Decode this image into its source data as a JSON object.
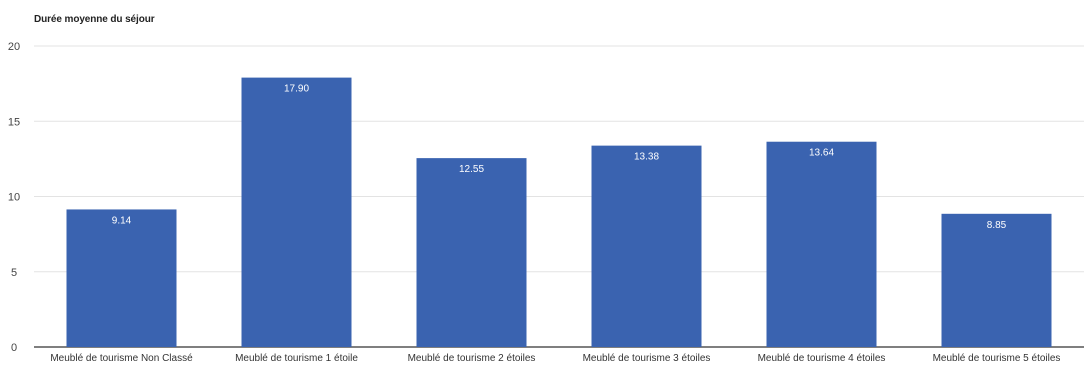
{
  "chart_data": {
    "type": "bar",
    "title": "Durée moyenne du séjour",
    "xlabel": "",
    "ylabel": "",
    "categories": [
      "Meublé de tourisme Non Classé",
      "Meublé de tourisme 1 étoile",
      "Meublé de tourisme 2 étoiles",
      "Meublé de tourisme 3 étoiles",
      "Meublé de tourisme 4 étoiles",
      "Meublé de tourisme 5 étoiles"
    ],
    "values": [
      9.14,
      17.9,
      12.55,
      13.38,
      13.64,
      8.85
    ],
    "data_labels": [
      "9.14",
      "17.90",
      "12.55",
      "13.38",
      "13.64",
      "8.85"
    ],
    "yticks": [
      0,
      5,
      10,
      15,
      20
    ],
    "ylim": [
      0,
      20
    ],
    "grid": true,
    "legend": "none",
    "colors": {
      "bar": "#3a63b0",
      "grid": "#e3e3e3",
      "baseline": "#333333",
      "tick_text": "#444444",
      "label_text": "#ffffff"
    }
  }
}
